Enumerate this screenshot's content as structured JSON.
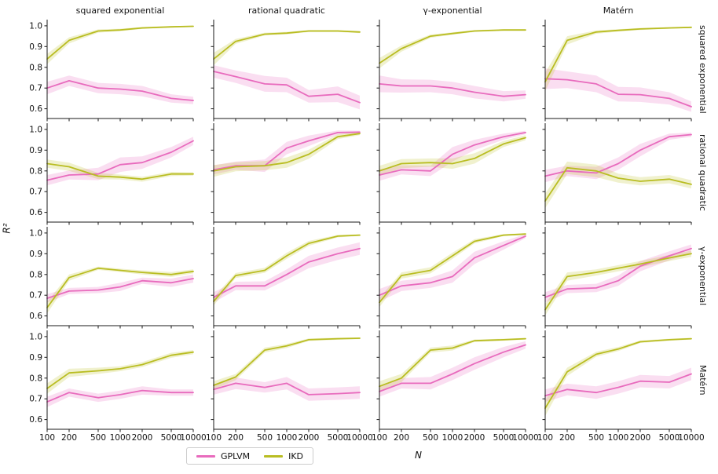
{
  "figure": {
    "background": "#ffffff"
  },
  "chart_data": {
    "type": "line",
    "x": [
      100,
      200,
      500,
      1000,
      2000,
      5000,
      10000
    ],
    "x_scale": "log",
    "xlabel": "N",
    "ylabel": "R²",
    "ylim": [
      0.55,
      1.03
    ],
    "yticks": [
      1.0,
      0.9,
      0.8,
      0.7,
      0.6
    ],
    "ytick_labels": [
      "1.0",
      "0.9",
      "0.8",
      "0.7",
      "0.6"
    ],
    "xtick_labels": [
      "100",
      "200",
      "500",
      "1000",
      "2000",
      "5000",
      "10000"
    ],
    "grid_lines": "off",
    "col_titles": [
      "squared exponential",
      "rational quadratic",
      "γ-exponential",
      "Matérn"
    ],
    "row_titles": [
      "squared exponential",
      "rational quadratic",
      "γ-exponential",
      "Matérn"
    ],
    "legend": {
      "position": "bottom-center",
      "entries": [
        {
          "label": "GPLVM",
          "color": "#e86bbd",
          "band_opacity": 0.22
        },
        {
          "label": "IKD",
          "color": "#b9bd22",
          "band_opacity": 0.22
        }
      ]
    },
    "grid": [
      {
        "row": "squared exponential",
        "col": "squared exponential",
        "series": [
          {
            "name": "GPLVM",
            "values": [
              0.7,
              0.735,
              0.7,
              0.695,
              0.685,
              0.65,
              0.64
            ],
            "band": [
              0.03,
              0.025,
              0.025,
              0.025,
              0.025,
              0.02,
              0.018
            ]
          },
          {
            "name": "IKD",
            "values": [
              0.84,
              0.93,
              0.975,
              0.98,
              0.99,
              0.995,
              0.998
            ],
            "band": [
              0.025,
              0.015,
              0.008,
              0.006,
              0.005,
              0.004,
              0.003
            ]
          }
        ]
      },
      {
        "row": "squared exponential",
        "col": "rational quadratic",
        "series": [
          {
            "name": "GPLVM",
            "values": [
              0.78,
              0.755,
              0.72,
              0.715,
              0.66,
              0.67,
              0.63
            ],
            "band": [
              0.03,
              0.03,
              0.038,
              0.035,
              0.03,
              0.038,
              0.033
            ]
          },
          {
            "name": "IKD",
            "values": [
              0.84,
              0.925,
              0.96,
              0.965,
              0.975,
              0.975,
              0.97
            ],
            "band": [
              0.03,
              0.012,
              0.007,
              0.006,
              0.005,
              0.005,
              0.005
            ]
          }
        ]
      },
      {
        "row": "squared exponential",
        "col": "γ-exponential",
        "series": [
          {
            "name": "GPLVM",
            "values": [
              0.72,
              0.71,
              0.71,
              0.7,
              0.68,
              0.66,
              0.668
            ],
            "band": [
              0.04,
              0.032,
              0.03,
              0.03,
              0.03,
              0.025,
              0.02
            ]
          },
          {
            "name": "IKD",
            "values": [
              0.82,
              0.89,
              0.95,
              0.963,
              0.975,
              0.98,
              0.98
            ],
            "band": [
              0.025,
              0.015,
              0.008,
              0.006,
              0.005,
              0.004,
              0.004
            ]
          }
        ]
      },
      {
        "row": "squared exponential",
        "col": "Matérn",
        "series": [
          {
            "name": "GPLVM",
            "values": [
              0.745,
              0.74,
              0.72,
              0.67,
              0.668,
              0.65,
              0.61
            ],
            "band": [
              0.05,
              0.04,
              0.04,
              0.035,
              0.035,
              0.03,
              0.025
            ]
          },
          {
            "name": "IKD",
            "values": [
              0.73,
              0.93,
              0.97,
              0.978,
              0.985,
              0.99,
              0.993
            ],
            "band": [
              0.045,
              0.02,
              0.008,
              0.006,
              0.005,
              0.004,
              0.003
            ]
          }
        ]
      },
      {
        "row": "rational quadratic",
        "col": "squared exponential",
        "series": [
          {
            "name": "GPLVM",
            "values": [
              0.755,
              0.78,
              0.785,
              0.83,
              0.84,
              0.89,
              0.945
            ],
            "band": [
              0.025,
              0.022,
              0.03,
              0.035,
              0.03,
              0.025,
              0.02
            ]
          },
          {
            "name": "IKD",
            "values": [
              0.835,
              0.82,
              0.775,
              0.77,
              0.76,
              0.785,
              0.785
            ],
            "band": [
              0.02,
              0.02,
              0.015,
              0.012,
              0.012,
              0.01,
              0.008
            ]
          }
        ]
      },
      {
        "row": "rational quadratic",
        "col": "rational quadratic",
        "series": [
          {
            "name": "GPLVM",
            "values": [
              0.805,
              0.825,
              0.825,
              0.91,
              0.945,
              0.985,
              0.987
            ],
            "band": [
              0.022,
              0.02,
              0.03,
              0.03,
              0.025,
              0.01,
              0.007
            ]
          },
          {
            "name": "IKD",
            "values": [
              0.8,
              0.82,
              0.825,
              0.84,
              0.88,
              0.965,
              0.98
            ],
            "band": [
              0.028,
              0.022,
              0.022,
              0.025,
              0.022,
              0.012,
              0.008
            ]
          }
        ]
      },
      {
        "row": "rational quadratic",
        "col": "γ-exponential",
        "series": [
          {
            "name": "GPLVM",
            "values": [
              0.78,
              0.805,
              0.8,
              0.88,
              0.925,
              0.965,
              0.985
            ],
            "band": [
              0.028,
              0.022,
              0.025,
              0.035,
              0.025,
              0.015,
              0.008
            ]
          },
          {
            "name": "IKD",
            "values": [
              0.8,
              0.835,
              0.84,
              0.835,
              0.86,
              0.93,
              0.96
            ],
            "band": [
              0.025,
              0.022,
              0.02,
              0.025,
              0.025,
              0.015,
              0.012
            ]
          }
        ]
      },
      {
        "row": "rational quadratic",
        "col": "Matérn",
        "series": [
          {
            "name": "GPLVM",
            "values": [
              0.775,
              0.8,
              0.79,
              0.835,
              0.9,
              0.965,
              0.975
            ],
            "band": [
              0.03,
              0.025,
              0.03,
              0.03,
              0.03,
              0.015,
              0.01
            ]
          },
          {
            "name": "IKD",
            "values": [
              0.655,
              0.815,
              0.8,
              0.765,
              0.75,
              0.76,
              0.735
            ],
            "band": [
              0.035,
              0.03,
              0.03,
              0.022,
              0.02,
              0.02,
              0.02
            ]
          }
        ]
      },
      {
        "row": "γ-exponential",
        "col": "squared exponential",
        "series": [
          {
            "name": "GPLVM",
            "values": [
              0.685,
              0.72,
              0.725,
              0.74,
              0.77,
              0.76,
              0.78
            ],
            "band": [
              0.02,
              0.015,
              0.015,
              0.02,
              0.015,
              0.02,
              0.02
            ]
          },
          {
            "name": "IKD",
            "values": [
              0.64,
              0.785,
              0.83,
              0.82,
              0.81,
              0.8,
              0.815
            ],
            "band": [
              0.028,
              0.015,
              0.008,
              0.008,
              0.01,
              0.012,
              0.01
            ]
          }
        ]
      },
      {
        "row": "γ-exponential",
        "col": "rational quadratic",
        "series": [
          {
            "name": "GPLVM",
            "values": [
              0.69,
              0.745,
              0.745,
              0.8,
              0.86,
              0.9,
              0.925
            ],
            "band": [
              0.025,
              0.02,
              0.022,
              0.025,
              0.03,
              0.03,
              0.03
            ]
          },
          {
            "name": "IKD",
            "values": [
              0.67,
              0.795,
              0.82,
              0.89,
              0.95,
              0.985,
              0.99
            ],
            "band": [
              0.02,
              0.012,
              0.012,
              0.015,
              0.012,
              0.006,
              0.004
            ]
          }
        ]
      },
      {
        "row": "γ-exponential",
        "col": "γ-exponential",
        "series": [
          {
            "name": "GPLVM",
            "values": [
              0.7,
              0.745,
              0.76,
              0.79,
              0.88,
              0.94,
              0.985
            ],
            "band": [
              0.03,
              0.025,
              0.025,
              0.03,
              0.03,
              0.02,
              0.01
            ]
          },
          {
            "name": "IKD",
            "values": [
              0.665,
              0.795,
              0.82,
              0.89,
              0.96,
              0.99,
              0.995
            ],
            "band": [
              0.022,
              0.015,
              0.015,
              0.015,
              0.01,
              0.005,
              0.004
            ]
          }
        ]
      },
      {
        "row": "γ-exponential",
        "col": "Matérn",
        "series": [
          {
            "name": "GPLVM",
            "values": [
              0.69,
              0.73,
              0.735,
              0.77,
              0.84,
              0.89,
              0.925
            ],
            "band": [
              0.025,
              0.02,
              0.02,
              0.025,
              0.025,
              0.022,
              0.02
            ]
          },
          {
            "name": "IKD",
            "values": [
              0.63,
              0.79,
              0.81,
              0.83,
              0.85,
              0.88,
              0.9
            ],
            "band": [
              0.028,
              0.02,
              0.015,
              0.015,
              0.015,
              0.015,
              0.015
            ]
          }
        ]
      },
      {
        "row": "Matérn",
        "col": "squared exponential",
        "series": [
          {
            "name": "GPLVM",
            "values": [
              0.685,
              0.73,
              0.705,
              0.72,
              0.74,
              0.73,
              0.73
            ],
            "band": [
              0.025,
              0.02,
              0.02,
              0.02,
              0.02,
              0.015,
              0.015
            ]
          },
          {
            "name": "IKD",
            "values": [
              0.75,
              0.825,
              0.835,
              0.845,
              0.865,
              0.91,
              0.925
            ],
            "band": [
              0.025,
              0.02,
              0.015,
              0.012,
              0.012,
              0.012,
              0.01
            ]
          }
        ]
      },
      {
        "row": "Matérn",
        "col": "rational quadratic",
        "series": [
          {
            "name": "GPLVM",
            "values": [
              0.745,
              0.775,
              0.755,
              0.775,
              0.72,
              0.725,
              0.73
            ],
            "band": [
              0.025,
              0.028,
              0.025,
              0.03,
              0.03,
              0.03,
              0.03
            ]
          },
          {
            "name": "IKD",
            "values": [
              0.765,
              0.805,
              0.935,
              0.955,
              0.985,
              0.99,
              0.992
            ],
            "band": [
              0.02,
              0.015,
              0.012,
              0.01,
              0.006,
              0.005,
              0.004
            ]
          }
        ]
      },
      {
        "row": "Matérn",
        "col": "γ-exponential",
        "series": [
          {
            "name": "GPLVM",
            "values": [
              0.735,
              0.775,
              0.775,
              0.82,
              0.87,
              0.925,
              0.96
            ],
            "band": [
              0.025,
              0.025,
              0.03,
              0.03,
              0.03,
              0.025,
              0.018
            ]
          },
          {
            "name": "IKD",
            "values": [
              0.76,
              0.8,
              0.935,
              0.945,
              0.98,
              0.985,
              0.99
            ],
            "band": [
              0.025,
              0.02,
              0.012,
              0.012,
              0.006,
              0.005,
              0.004
            ]
          }
        ]
      },
      {
        "row": "Matérn",
        "col": "Matérn",
        "series": [
          {
            "name": "GPLVM",
            "values": [
              0.715,
              0.745,
              0.73,
              0.755,
              0.785,
              0.78,
              0.82
            ],
            "band": [
              0.03,
              0.028,
              0.03,
              0.03,
              0.03,
              0.03,
              0.03
            ]
          },
          {
            "name": "IKD",
            "values": [
              0.655,
              0.83,
              0.915,
              0.94,
              0.975,
              0.985,
              0.99
            ],
            "band": [
              0.038,
              0.02,
              0.012,
              0.01,
              0.006,
              0.005,
              0.004
            ]
          }
        ]
      }
    ]
  }
}
